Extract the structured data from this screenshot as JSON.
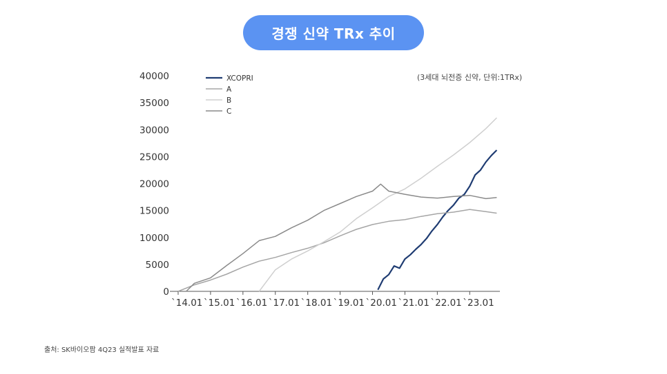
{
  "title": "경쟁 신약 TRx 추이",
  "unit_note": "(3세대 뇌전증 신약, 단위:1TRx)",
  "source": "출처: SK바이오팜 4Q23 실적발표 자료",
  "colors": {
    "title_bg": "#5b93f2",
    "XCOPRI": "#1f3c72",
    "A": "#a5a5a5",
    "B": "#cfcfcf",
    "C": "#8a8a8a"
  },
  "chart_data": {
    "type": "line",
    "title": "경쟁 신약 TRx 추이",
    "x_unit": "month index from `14.01 (0 = Jan 2014)",
    "x_ticks": [
      "`14.01",
      "`15.01",
      "`16.01",
      "`17.01",
      "`18.01",
      "`19.01",
      "`20.01",
      "`21.01",
      "`22.01",
      "`23.01"
    ],
    "ylim": [
      0,
      40000
    ],
    "y_ticks": [
      0,
      5000,
      10000,
      15000,
      20000,
      25000,
      30000,
      35000,
      40000
    ],
    "legend_position": "top-left",
    "series": [
      {
        "name": "XCOPRI",
        "x": [
          74,
          76,
          78,
          80,
          82,
          84,
          86,
          88,
          90,
          92,
          94,
          96,
          98,
          100,
          102,
          104,
          106,
          108,
          110,
          112,
          114,
          116,
          118
        ],
        "values": [
          300,
          2300,
          3100,
          4700,
          4300,
          6000,
          6800,
          7800,
          8700,
          9800,
          11200,
          12400,
          13800,
          15000,
          16000,
          17300,
          18000,
          19500,
          21600,
          22500,
          24000,
          25200,
          26200
        ]
      },
      {
        "name": "A",
        "x": [
          0,
          6,
          12,
          18,
          24,
          30,
          36,
          42,
          48,
          54,
          60,
          66,
          72,
          78,
          84,
          90,
          96,
          102,
          108,
          114,
          118
        ],
        "values": [
          0,
          1200,
          2100,
          3200,
          4500,
          5600,
          6300,
          7200,
          8000,
          9000,
          10300,
          11500,
          12400,
          13000,
          13300,
          13900,
          14400,
          14700,
          15200,
          14800,
          14500
        ]
      },
      {
        "name": "B",
        "x": [
          30,
          36,
          42,
          48,
          54,
          60,
          66,
          72,
          78,
          84,
          90,
          96,
          102,
          108,
          114,
          118
        ],
        "values": [
          0,
          4000,
          6000,
          7500,
          9200,
          11000,
          13500,
          15500,
          17600,
          19000,
          21000,
          23200,
          25300,
          27600,
          30200,
          32200
        ]
      },
      {
        "name": "C",
        "x": [
          3,
          6,
          12,
          18,
          24,
          30,
          36,
          42,
          48,
          54,
          60,
          66,
          72,
          75,
          78,
          84,
          90,
          96,
          102,
          108,
          114,
          118
        ],
        "values": [
          0,
          1500,
          2500,
          4800,
          7000,
          9400,
          10200,
          11800,
          13200,
          15000,
          16300,
          17600,
          18600,
          19900,
          18600,
          18000,
          17500,
          17300,
          17600,
          17800,
          17200,
          17400
        ]
      }
    ]
  }
}
